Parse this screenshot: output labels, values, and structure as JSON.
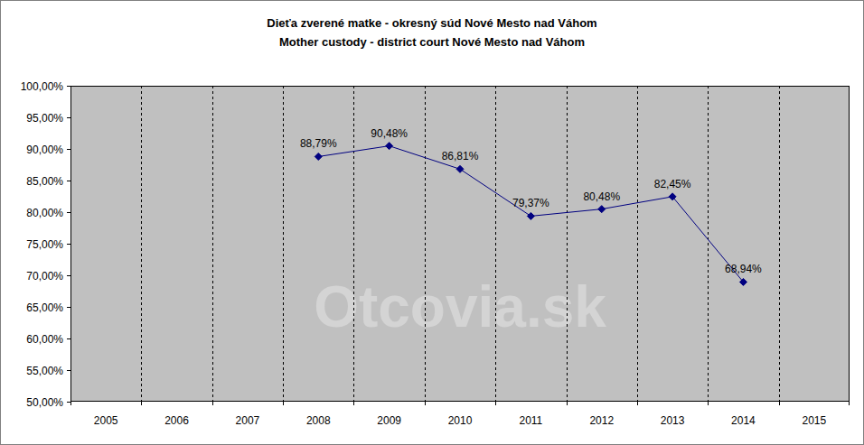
{
  "chart_data": {
    "type": "line",
    "title": "Dieťa zverené matke - okresný súd Nové Mesto nad Váhom",
    "subtitle": "Mother custody - district court Nové Mesto nad Váhom",
    "annotation": "Otcovia.sk",
    "categories": [
      "2005",
      "2006",
      "2007",
      "2008",
      "2009",
      "2010",
      "2011",
      "2012",
      "2013",
      "2014",
      "2015"
    ],
    "values": [
      null,
      null,
      null,
      88.79,
      90.48,
      86.81,
      79.37,
      80.48,
      82.45,
      68.94,
      null
    ],
    "value_labels": [
      null,
      null,
      null,
      "88,79%",
      "90,48%",
      "86,81%",
      "79,37%",
      "80,48%",
      "82,45%",
      "68,94%",
      null
    ],
    "color": "#000080",
    "marker": "diamond",
    "line_style": "solid",
    "data_labels": true,
    "grid": "x",
    "ylim": [
      50,
      100
    ],
    "yticks": [
      {
        "value": 50,
        "label": "50,00%"
      },
      {
        "value": 55,
        "label": "55,00%"
      },
      {
        "value": 60,
        "label": "60,00%"
      },
      {
        "value": 65,
        "label": "65,00%"
      },
      {
        "value": 70,
        "label": "70,00%"
      },
      {
        "value": 75,
        "label": "75,00%"
      },
      {
        "value": 80,
        "label": "80,00%"
      },
      {
        "value": 85,
        "label": "85,00%"
      },
      {
        "value": 90,
        "label": "90,00%"
      },
      {
        "value": 95,
        "label": "95,00%"
      },
      {
        "value": 100,
        "label": "100,00%"
      }
    ]
  }
}
